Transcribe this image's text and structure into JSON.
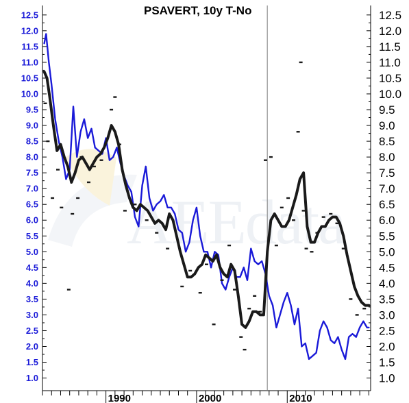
{
  "watermark": {
    "text": "AEEdata",
    "icon": "aeedata-logo-icon"
  },
  "chart_data": {
    "type": "line",
    "title": "PSAVERT, 10y T-No",
    "xlabel": "",
    "ylabel": "",
    "x_range": [
      1983.0,
      2019.2
    ],
    "x_ticks": [
      1990,
      2000,
      2010
    ],
    "x_tick_labels": [
      "1990",
      "2000",
      "2010"
    ],
    "ylim": [
      0.6,
      12.8
    ],
    "y_ticks": [
      1.0,
      1.5,
      2.0,
      2.5,
      3.0,
      3.5,
      4.0,
      4.5,
      5.0,
      5.5,
      6.0,
      6.5,
      7.0,
      7.5,
      8.0,
      8.5,
      9.0,
      9.5,
      10.0,
      10.5,
      11.0,
      11.5,
      12.0,
      12.5
    ],
    "left_axis_color": "#1a1ad8",
    "right_axis_color": "#000000",
    "vertical_marker_x": 2007.8,
    "grid": false,
    "legend": "none",
    "series": [
      {
        "color": "#1a1ad8",
        "style": "line",
        "x": [
          1983.2,
          1983.4,
          1983.7,
          1984.0,
          1984.4,
          1984.8,
          1985.2,
          1985.6,
          1986.0,
          1986.4,
          1986.8,
          1987.2,
          1987.6,
          1988.0,
          1988.4,
          1988.8,
          1989.2,
          1989.6,
          1990.0,
          1990.4,
          1990.8,
          1991.2,
          1991.6,
          1992.0,
          1992.4,
          1992.8,
          1993.2,
          1993.6,
          1994.0,
          1994.4,
          1994.8,
          1995.2,
          1995.6,
          1996.0,
          1996.4,
          1996.8,
          1997.2,
          1997.6,
          1998.0,
          1998.4,
          1998.8,
          1999.2,
          1999.6,
          2000.0,
          2000.4,
          2000.8,
          2001.2,
          2001.6,
          2002.0,
          2002.4,
          2002.8,
          2003.2,
          2003.6,
          2004.0,
          2004.4,
          2004.8,
          2005.2,
          2005.6,
          2006.0,
          2006.4,
          2006.8,
          2007.2,
          2007.6,
          2008.0,
          2008.4,
          2008.8,
          2009.2,
          2009.6,
          2010.0,
          2010.4,
          2010.8,
          2011.2,
          2011.6,
          2012.0,
          2012.4,
          2012.8,
          2013.2,
          2013.6,
          2014.0,
          2014.4,
          2014.8,
          2015.2,
          2015.6,
          2016.0,
          2016.4,
          2016.8,
          2017.2,
          2017.6,
          2018.0,
          2018.4,
          2018.8,
          2019.0
        ],
        "values": [
          11.6,
          11.9,
          11.0,
          10.3,
          9.2,
          8.5,
          8.0,
          7.3,
          7.6,
          9.6,
          8.0,
          8.8,
          9.2,
          8.6,
          8.9,
          8.3,
          8.2,
          8.1,
          8.6,
          7.9,
          8.0,
          8.3,
          7.8,
          7.4,
          7.1,
          6.9,
          6.1,
          5.8,
          7.1,
          7.7,
          6.7,
          6.3,
          6.5,
          6.6,
          6.8,
          6.4,
          6.4,
          6.2,
          5.7,
          5.6,
          5.0,
          5.3,
          6.0,
          6.4,
          5.5,
          5.0,
          5.0,
          4.5,
          5.0,
          4.9,
          4.0,
          3.8,
          4.2,
          4.5,
          4.2,
          4.2,
          4.5,
          4.1,
          5.1,
          4.7,
          4.6,
          4.7,
          4.3,
          3.6,
          3.3,
          2.6,
          3.0,
          3.4,
          3.7,
          3.3,
          2.7,
          3.2,
          2.0,
          2.1,
          1.6,
          1.7,
          1.8,
          2.5,
          2.8,
          2.6,
          2.2,
          2.1,
          2.3,
          1.9,
          1.6,
          2.3,
          2.4,
          2.3,
          2.6,
          2.8,
          2.6,
          2.6
        ]
      },
      {
        "color": "#1a1a1a",
        "style": "thick-line",
        "x": [
          1983.2,
          1983.5,
          1983.8,
          1984.2,
          1984.6,
          1985.0,
          1985.4,
          1985.8,
          1986.2,
          1986.6,
          1987.0,
          1987.4,
          1987.8,
          1988.2,
          1988.6,
          1989.0,
          1989.4,
          1989.8,
          1990.2,
          1990.6,
          1991.0,
          1991.4,
          1991.8,
          1992.2,
          1992.6,
          1993.0,
          1993.4,
          1993.8,
          1994.2,
          1994.6,
          1995.0,
          1995.4,
          1995.8,
          1996.2,
          1996.6,
          1997.0,
          1997.4,
          1997.8,
          1998.2,
          1998.6,
          1999.0,
          1999.4,
          1999.8,
          2000.2,
          2000.6,
          2001.0,
          2001.4,
          2001.8,
          2002.2,
          2002.6,
          2003.0,
          2003.4,
          2003.8,
          2004.2,
          2004.6,
          2005.0,
          2005.4,
          2005.8,
          2006.2,
          2006.6,
          2007.0,
          2007.4,
          2007.8,
          2008.2,
          2008.6,
          2009.0,
          2009.4,
          2009.8,
          2010.2,
          2010.6,
          2011.0,
          2011.4,
          2011.8,
          2012.2,
          2012.6,
          2013.0,
          2013.4,
          2013.8,
          2014.2,
          2014.6,
          2015.0,
          2015.4,
          2015.8,
          2016.2,
          2016.6,
          2017.0,
          2017.4,
          2017.8,
          2018.2,
          2018.6,
          2019.0
        ],
        "values": [
          10.7,
          10.5,
          9.9,
          9.0,
          8.2,
          8.4,
          8.0,
          7.7,
          7.2,
          7.5,
          7.9,
          8.0,
          7.8,
          7.6,
          7.8,
          8.0,
          8.1,
          8.3,
          8.6,
          9.0,
          8.8,
          8.4,
          7.6,
          7.1,
          6.7,
          6.4,
          6.3,
          6.5,
          6.4,
          6.3,
          6.1,
          5.9,
          6.0,
          5.9,
          5.7,
          6.2,
          6.0,
          5.5,
          5.0,
          4.6,
          4.2,
          4.2,
          4.3,
          4.5,
          4.6,
          4.9,
          4.8,
          4.7,
          4.9,
          4.5,
          4.3,
          4.2,
          4.6,
          4.4,
          3.6,
          2.7,
          2.6,
          2.8,
          3.1,
          3.1,
          3.0,
          3.0,
          5.0,
          6.0,
          6.2,
          6.0,
          5.8,
          5.8,
          6.0,
          6.4,
          6.8,
          7.3,
          7.5,
          5.8,
          5.3,
          5.3,
          5.6,
          5.8,
          5.8,
          6.0,
          6.1,
          6.1,
          5.9,
          5.5,
          4.9,
          4.4,
          3.9,
          3.6,
          3.4,
          3.3,
          3.3
        ]
      },
      {
        "color": "#1a1a1a",
        "style": "points",
        "x": [
          1983.3,
          1983.6,
          1984.1,
          1984.7,
          1985.1,
          1985.9,
          1986.3,
          1986.9,
          1987.3,
          1988.1,
          1988.7,
          1989.5,
          1990.6,
          1991.0,
          1991.5,
          1992.1,
          1993.2,
          1994.5,
          1995.6,
          1996.8,
          1998.4,
          1999.3,
          2000.4,
          2001.1,
          2001.9,
          2002.8,
          2003.6,
          2004.2,
          2004.9,
          2005.3,
          2005.8,
          2006.4,
          2007.0,
          2007.6,
          2008.2,
          2008.8,
          2009.4,
          2010.1,
          2010.7,
          2011.2,
          2011.5,
          2011.8,
          2012.1,
          2012.7,
          2013.3,
          2014.0,
          2014.8,
          2015.5,
          2016.2,
          2017.0,
          2017.7,
          2018.5
        ],
        "values": [
          9.7,
          8.5,
          6.7,
          7.6,
          6.4,
          3.8,
          6.2,
          6.7,
          8.0,
          7.2,
          7.7,
          7.9,
          9.5,
          9.9,
          8.4,
          6.3,
          6.5,
          6.0,
          5.6,
          5.1,
          3.9,
          4.4,
          3.7,
          4.6,
          2.7,
          4.1,
          5.2,
          3.8,
          2.3,
          1.9,
          3.2,
          3.6,
          3.1,
          7.9,
          8.0,
          5.2,
          6.4,
          6.7,
          6.0,
          8.8,
          11.0,
          6.3,
          5.1,
          5.0,
          5.6,
          6.1,
          6.2,
          5.9,
          5.1,
          3.5,
          3.0,
          3.2
        ]
      }
    ]
  }
}
